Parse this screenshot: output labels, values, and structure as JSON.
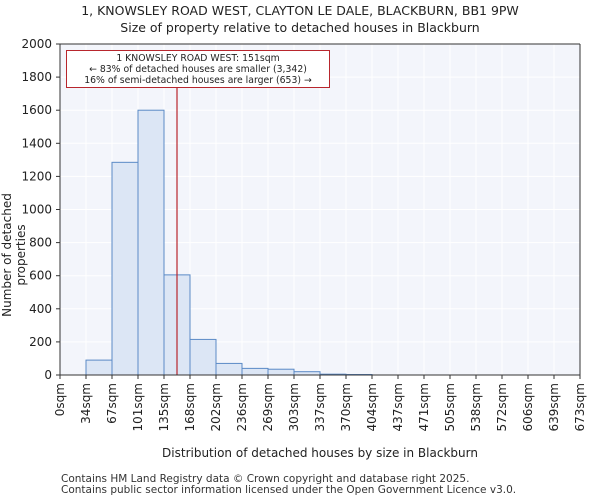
{
  "chart_data": {
    "type": "bar",
    "title": "1, KNOWSLEY ROAD WEST, CLAYTON LE DALE, BLACKBURN, BB1 9PW",
    "subtitle": "Size of property relative to detached houses in Blackburn",
    "xlabel": "Distribution of detached houses by size in Blackburn",
    "ylabel": "Number of detached properties",
    "ylim": [
      0,
      2000
    ],
    "yticks": [
      0,
      200,
      400,
      600,
      800,
      1000,
      1200,
      1400,
      1600,
      1800,
      2000
    ],
    "tick_labels": [
      "0sqm",
      "34sqm",
      "67sqm",
      "101sqm",
      "135sqm",
      "168sqm",
      "202sqm",
      "236sqm",
      "269sqm",
      "303sqm",
      "337sqm",
      "370sqm",
      "404sqm",
      "437sqm",
      "471sqm",
      "505sqm",
      "538sqm",
      "572sqm",
      "606sqm",
      "639sqm",
      "673sqm"
    ],
    "values": [
      0,
      90,
      1285,
      1600,
      605,
      215,
      70,
      40,
      35,
      20,
      5,
      3,
      0,
      0,
      0,
      0,
      0,
      0,
      0,
      0
    ],
    "property_marker": {
      "label": "1 KNOWSLEY ROAD WEST: 151sqm",
      "bin_position": 4.5
    },
    "annotation": {
      "line1": "1 KNOWSLEY ROAD WEST: 151sqm",
      "line2": "← 83% of detached houses are smaller (3,342)",
      "line3": "16% of semi-detached houses are larger (653) →"
    },
    "colors": {
      "bar_fill": "#dce6f5",
      "bar_edge": "#5b8ac6",
      "marker": "#b8262d",
      "plot_bg": "#f3f5fb",
      "grid": "#ffffff"
    }
  },
  "footer": {
    "line1": "Contains HM Land Registry data © Crown copyright and database right 2025.",
    "line2": "Contains public sector information licensed under the Open Government Licence v3.0."
  }
}
